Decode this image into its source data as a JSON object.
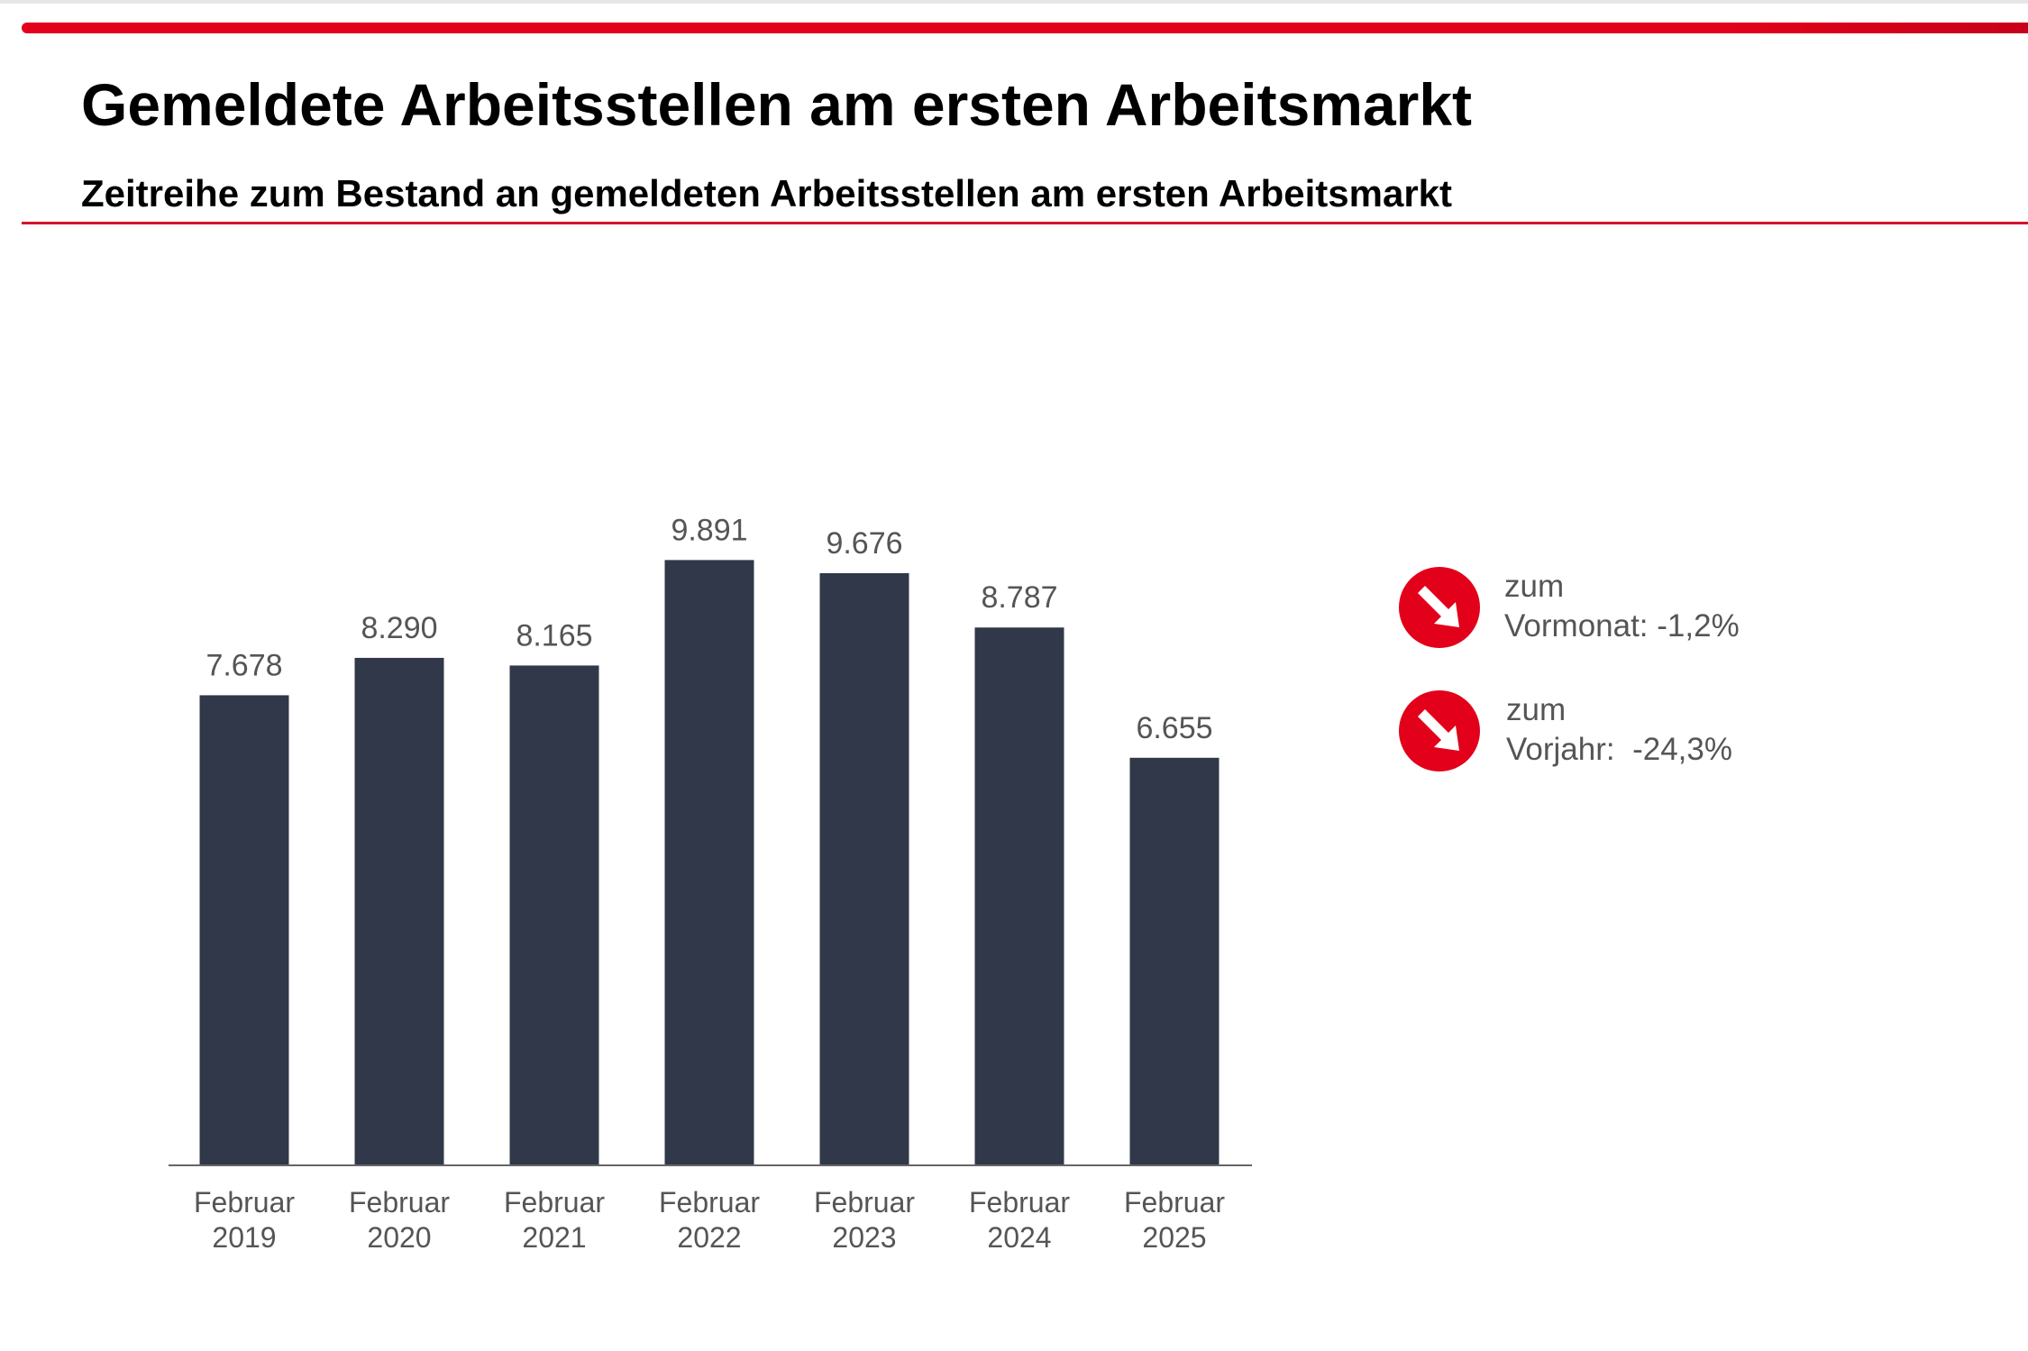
{
  "header": {
    "title": "Gemeldete Arbeitsstellen am ersten Arbeitsmarkt",
    "subtitle": "Zeitreihe zum Bestand an gemeldeten Arbeitsstellen am ersten Arbeitsmarkt"
  },
  "colors": {
    "accent": "#e2001a",
    "bar": "#303849",
    "text": "#555555"
  },
  "chart_data": {
    "type": "bar",
    "title": "",
    "xlabel": "",
    "ylabel": "",
    "categories": [
      [
        "Februar",
        "2019"
      ],
      [
        "Februar",
        "2020"
      ],
      [
        "Februar",
        "2021"
      ],
      [
        "Februar",
        "2022"
      ],
      [
        "Februar",
        "2023"
      ],
      [
        "Februar",
        "2024"
      ],
      [
        "Februar",
        "2025"
      ]
    ],
    "values": [
      7678,
      8290,
      8165,
      9891,
      9676,
      8787,
      6655
    ],
    "value_labels": [
      "7.678",
      "8.290",
      "8.165",
      "9.891",
      "9.676",
      "8.787",
      "6.655"
    ],
    "ylim": [
      0,
      10000
    ],
    "grid": false,
    "legend": "none"
  },
  "indicators": [
    {
      "icon": "arrow-down-right-icon",
      "line1": "zum",
      "line2": "Vormonat:",
      "value": "-1,2%"
    },
    {
      "icon": "arrow-down-right-icon",
      "line1": "zum",
      "line2": "Vorjahr:",
      "value": "-24,3%"
    }
  ]
}
